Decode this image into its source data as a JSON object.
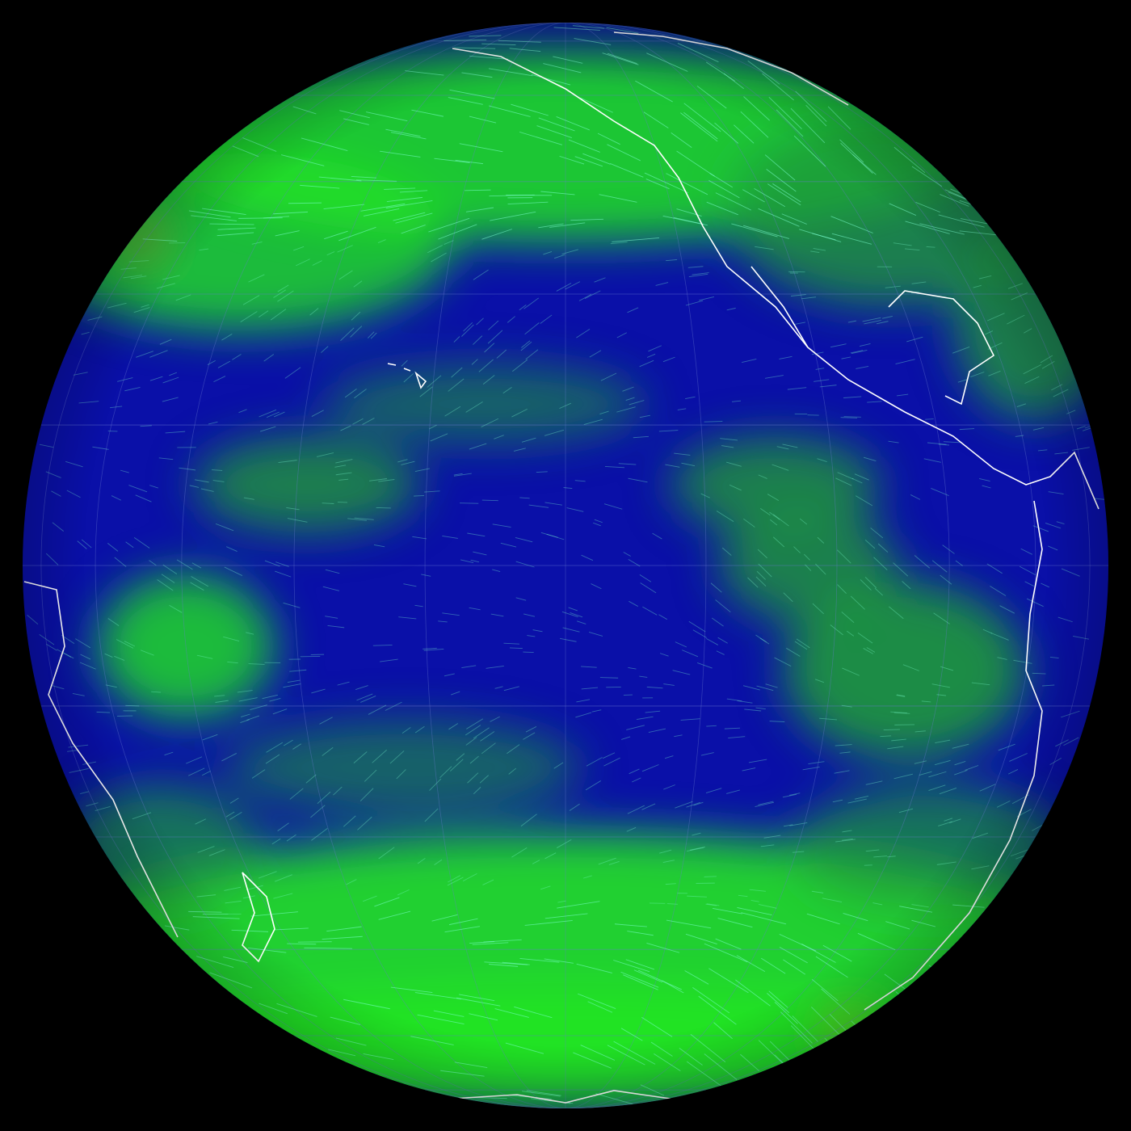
{
  "map": {
    "projection": "orthographic",
    "layer": "wind",
    "colors": {
      "background": "#000000",
      "calm": "#0000a8",
      "moderate": "#1f9a3a",
      "strong": "#22e622",
      "extreme": "#c04020",
      "streamline": "#7dffd0",
      "coastline": "#ffffff",
      "graticule": "#6a7ad0"
    }
  }
}
